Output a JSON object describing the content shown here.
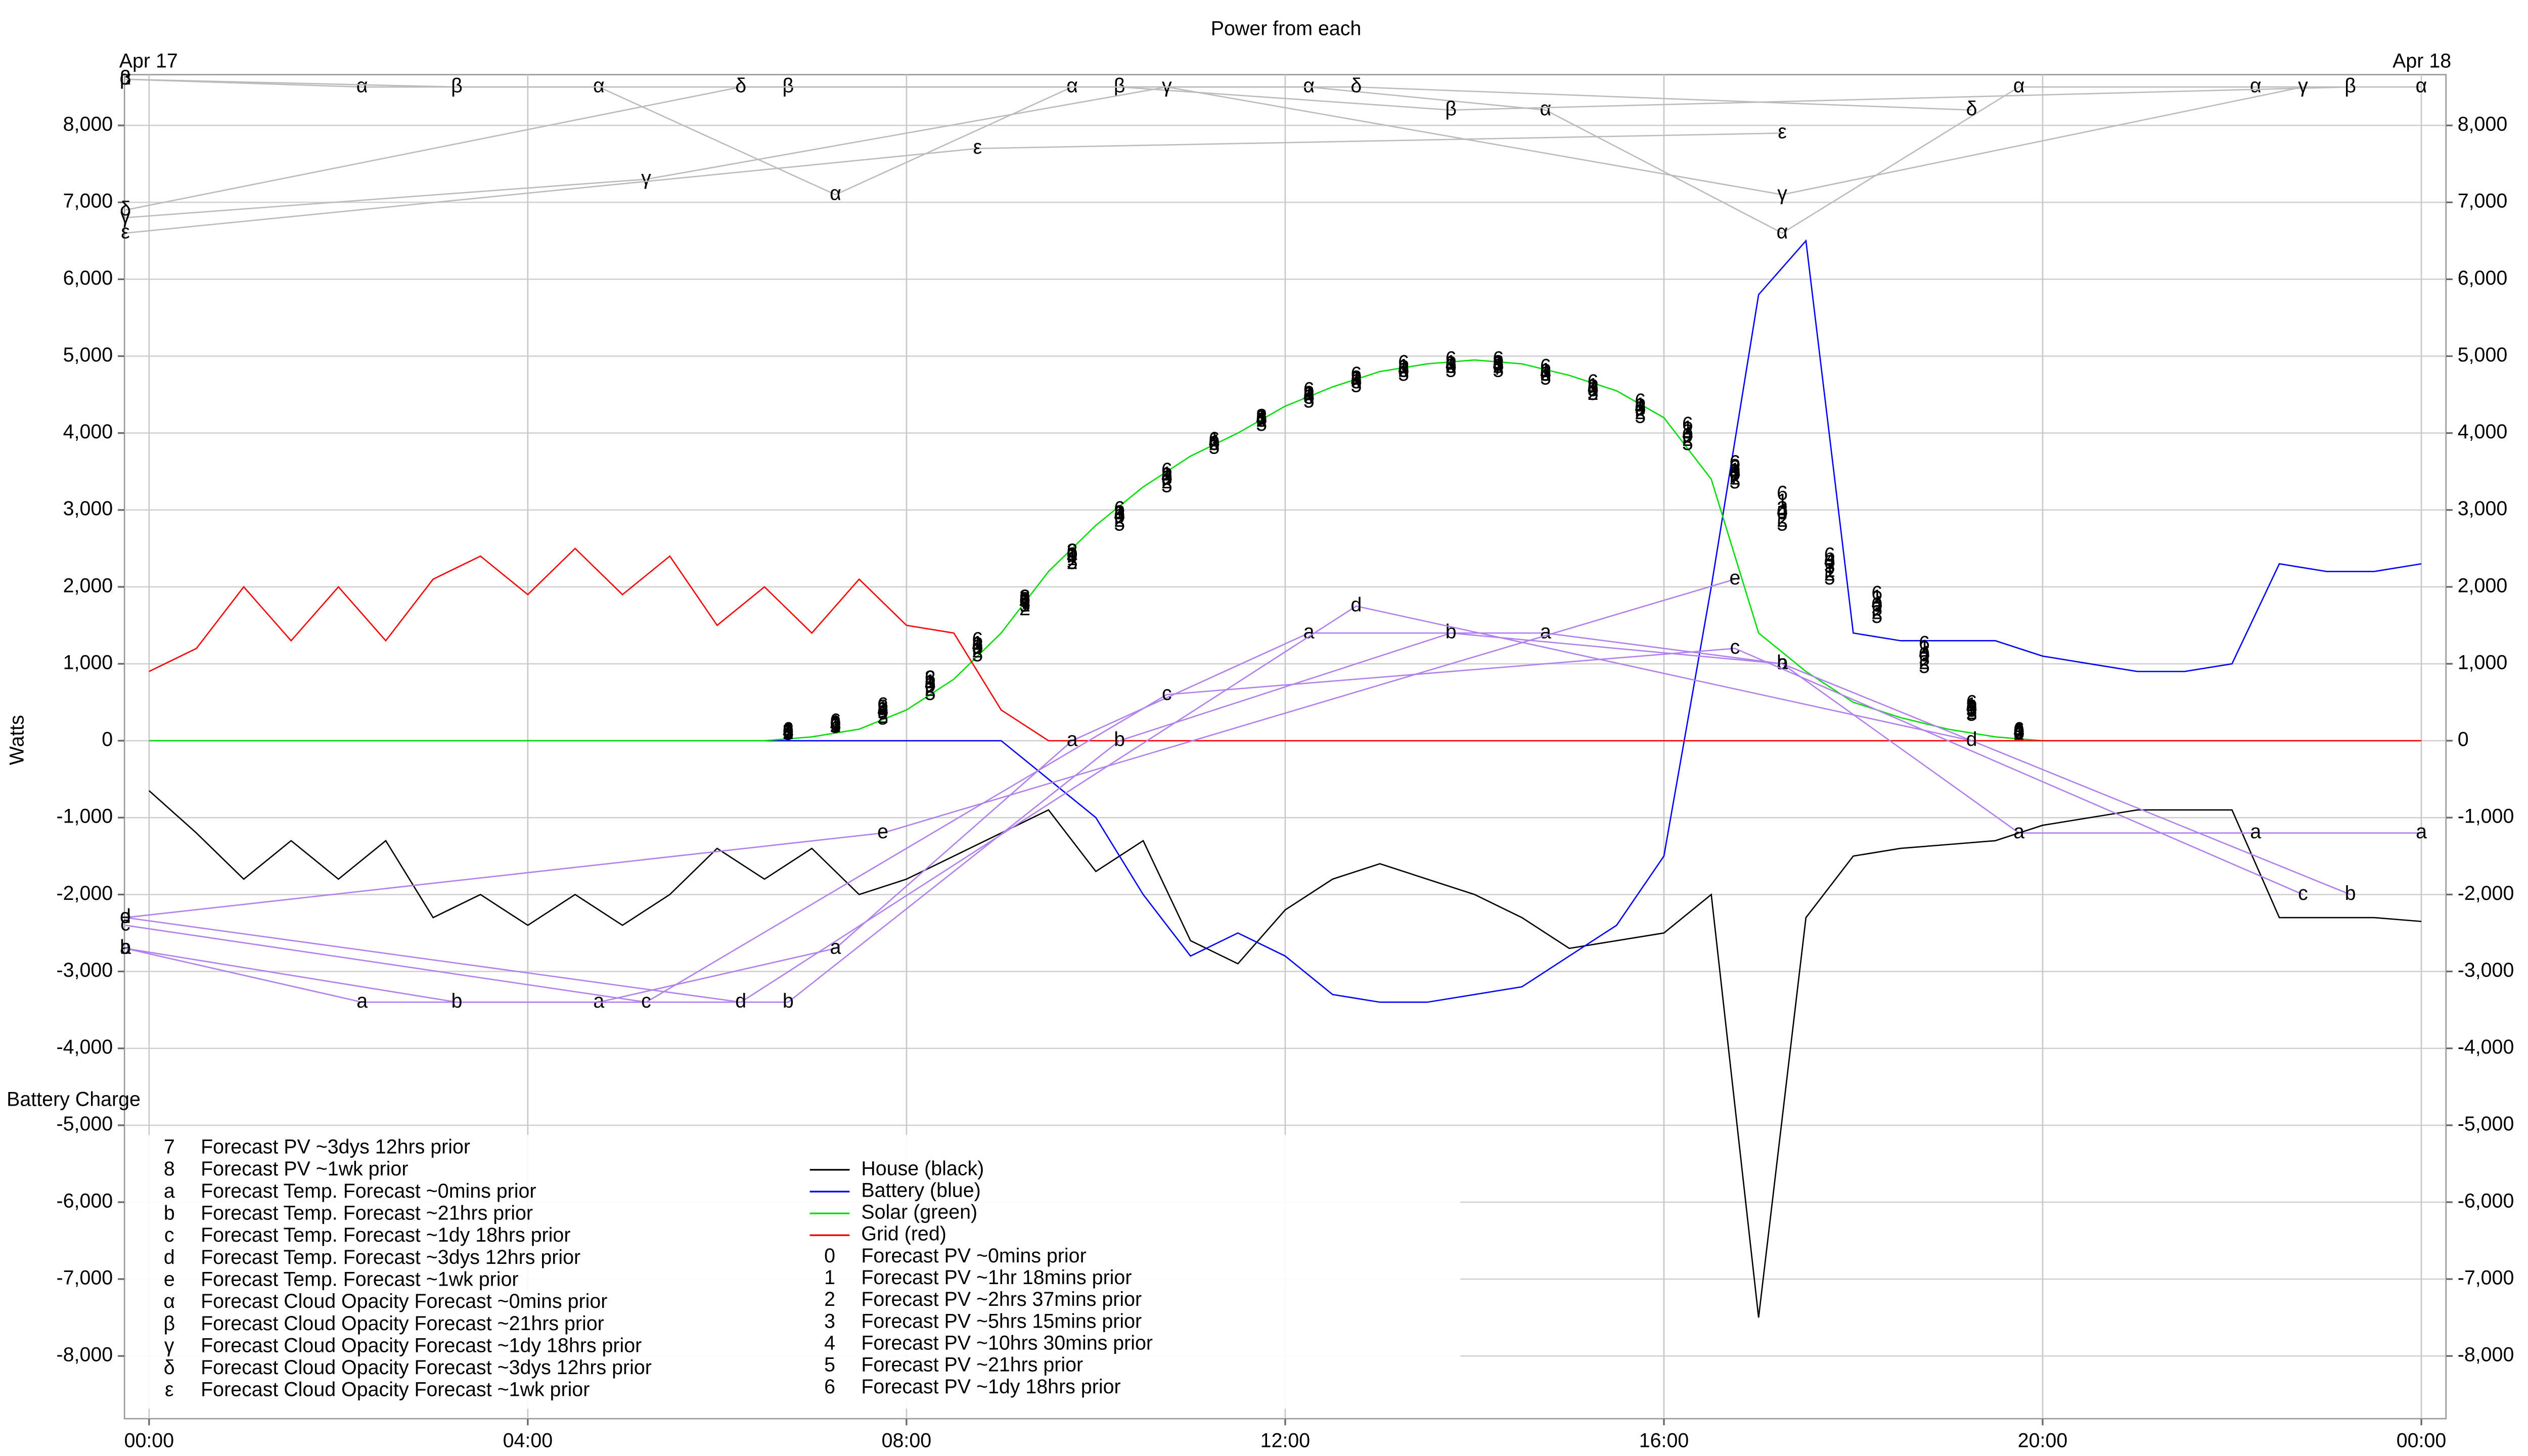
{
  "chart_data": {
    "type": "line",
    "title": "Power from each",
    "ylabel": "Watts",
    "annotations": [
      {
        "text": "Apr 17",
        "x": 0,
        "y": 8800
      },
      {
        "text": "Apr 18",
        "x": 24,
        "y": 8800
      },
      {
        "text": "Battery Charge",
        "x": -0.26,
        "y": -4700
      }
    ],
    "xlim": [
      -0.26,
      24.26
    ],
    "ylim": [
      -8815,
      8660
    ],
    "xticks": [
      {
        "value": 0,
        "label": "00:00"
      },
      {
        "value": 4,
        "label": "04:00"
      },
      {
        "value": 8,
        "label": "08:00"
      },
      {
        "value": 12,
        "label": "12:00"
      },
      {
        "value": 16,
        "label": "16:00"
      },
      {
        "value": 20,
        "label": "20:00"
      },
      {
        "value": 24,
        "label": "00:00"
      }
    ],
    "yticks": [
      {
        "value": -8000,
        "label": "-8,000"
      },
      {
        "value": -7000,
        "label": "-7,000"
      },
      {
        "value": -6000,
        "label": "-6,000"
      },
      {
        "value": -5000,
        "label": "-5,000"
      },
      {
        "value": -4000,
        "label": "-4,000"
      },
      {
        "value": -3000,
        "label": "-3,000"
      },
      {
        "value": -2000,
        "label": "-2,000"
      },
      {
        "value": -1000,
        "label": "-1,000"
      },
      0,
      {
        "value": 1000,
        "label": "1,000"
      },
      {
        "value": 2000,
        "label": "2,000"
      },
      {
        "value": 3000,
        "label": "3,000"
      },
      {
        "value": 4000,
        "label": "4,000"
      },
      {
        "value": 5000,
        "label": "5,000"
      },
      {
        "value": 6000,
        "label": "6,000"
      },
      {
        "value": 7000,
        "label": "7,000"
      },
      {
        "value": 8000,
        "label": "8,000"
      }
    ],
    "grid": true,
    "x": [
      0,
      0.5,
      1,
      1.5,
      2,
      2.5,
      3,
      3.5,
      4,
      4.5,
      5,
      5.5,
      6,
      6.5,
      7,
      7.5,
      8,
      8.5,
      9,
      9.5,
      10,
      10.5,
      11,
      11.5,
      12,
      12.5,
      13,
      13.5,
      14,
      14.5,
      15,
      15.5,
      16,
      16.5,
      17,
      17.5,
      18,
      18.5,
      19,
      19.5,
      20,
      20.5,
      21,
      21.5,
      22,
      22.5,
      23,
      23.5,
      24
    ],
    "series": [
      {
        "name": "House (black)",
        "color": "#000000",
        "values": [
          -650,
          -1200,
          -1800,
          -1300,
          -1800,
          -1300,
          -2300,
          -2000,
          -2400,
          -2000,
          -2400,
          -2000,
          -1400,
          -1800,
          -1400,
          -2000,
          -1800,
          -1500,
          -1200,
          -900,
          -1700,
          -1300,
          -2600,
          -2900,
          -2200,
          -1800,
          -1600,
          -1800,
          -2000,
          -2300,
          -2700,
          -2600,
          -2500,
          -2000,
          -7500,
          -2300,
          -1500,
          -1400,
          -1350,
          -1300,
          -1100,
          -1000,
          -900,
          -900,
          -900,
          -2300,
          -2300,
          -2300,
          -2350
        ]
      },
      {
        "name": "Battery (blue)",
        "color": "#0000ff",
        "values": [
          0,
          0,
          0,
          0,
          0,
          0,
          0,
          0,
          0,
          0,
          0,
          0,
          0,
          0,
          0,
          0,
          0,
          0,
          0,
          -500,
          -1000,
          -2000,
          -2800,
          -2500,
          -2800,
          -3300,
          -3400,
          -3400,
          -3300,
          -3200,
          -2800,
          -2400,
          -1500,
          2000,
          5800,
          6500,
          1400,
          1300,
          1300,
          1300,
          1100,
          1000,
          900,
          900,
          1000,
          2300,
          2200,
          2200,
          2300
        ]
      },
      {
        "name": "Solar (green)",
        "color": "#00dd00",
        "values": [
          0,
          0,
          0,
          0,
          0,
          0,
          0,
          0,
          0,
          0,
          0,
          0,
          0,
          0,
          50,
          150,
          400,
          800,
          1400,
          2200,
          2800,
          3300,
          3700,
          4000,
          4350,
          4600,
          4800,
          4900,
          4950,
          4900,
          4750,
          4550,
          4200,
          3400,
          1400,
          900,
          500,
          300,
          150,
          50,
          0,
          0,
          0,
          0,
          0,
          0,
          0,
          0,
          0
        ]
      },
      {
        "name": "Grid (red)",
        "color": "#ff0000",
        "values": [
          900,
          1200,
          2000,
          1300,
          2000,
          1300,
          2100,
          2400,
          1900,
          2500,
          1900,
          2400,
          1500,
          2000,
          1400,
          2100,
          1500,
          1400,
          400,
          0,
          0,
          0,
          0,
          0,
          0,
          0,
          0,
          0,
          0,
          0,
          0,
          0,
          0,
          0,
          0,
          0,
          0,
          0,
          0,
          0,
          0,
          0,
          0,
          0,
          0,
          0,
          0,
          0,
          0
        ]
      },
      {
        "name": "Forecast PV ~0mins prior",
        "symbol": "0",
        "color": "#000000",
        "x": [
          6.75,
          7.25,
          7.75,
          8.25,
          8.75,
          9.25,
          9.75,
          10.25,
          10.75,
          11.25,
          11.75,
          12.25,
          12.75,
          13.25,
          13.75,
          14.25,
          14.75,
          15.25,
          15.75,
          16.25,
          16.75,
          17.25,
          17.75,
          18.25,
          18.75,
          19.25,
          19.75
        ],
        "values": [
          100,
          200,
          350,
          700,
          1200,
          1800,
          2400,
          2900,
          3400,
          3850,
          4150,
          4450,
          4650,
          4800,
          4850,
          4850,
          4750,
          4550,
          4300,
          3950,
          3450,
          2950,
          2300,
          1750,
          1100,
          400,
          100
        ]
      },
      {
        "name": "Forecast PV ~1hr 18mins prior",
        "symbol": "1",
        "color": "#000000",
        "x": [
          6.75,
          7.25,
          7.75,
          8.25,
          8.75,
          9.25,
          9.75,
          10.25,
          10.75,
          11.25,
          11.75,
          12.25,
          12.75,
          13.25,
          13.75,
          14.25,
          14.75,
          15.25,
          15.75,
          16.25,
          16.75,
          17.25,
          17.75,
          18.25,
          18.75,
          19.25,
          19.75
        ],
        "values": [
          120,
          220,
          400,
          750,
          1250,
          1750,
          2350,
          2950,
          3450,
          3900,
          4200,
          4500,
          4700,
          4850,
          4900,
          4900,
          4800,
          4600,
          4350,
          4050,
          3500,
          3100,
          2200,
          1850,
          1200,
          450,
          120
        ]
      },
      {
        "name": "Forecast PV ~2hrs 37mins prior",
        "symbol": "2",
        "color": "#000000",
        "x": [
          6.75,
          7.25,
          7.75,
          8.25,
          8.75,
          9.25,
          9.75,
          10.25,
          10.75,
          11.25,
          11.75,
          12.25,
          12.75,
          13.25,
          13.75,
          14.25,
          14.75,
          15.25,
          15.75,
          16.25,
          16.75,
          17.25,
          17.75,
          18.25,
          18.75,
          19.25,
          19.75
        ],
        "values": [
          90,
          180,
          300,
          650,
          1150,
          1700,
          2300,
          2850,
          3350,
          3850,
          4150,
          4500,
          4700,
          4800,
          4850,
          4850,
          4750,
          4500,
          4250,
          3900,
          3400,
          2850,
          2150,
          1650,
          1000,
          350,
          80
        ]
      },
      {
        "name": "Forecast PV ~5hrs 15mins prior",
        "symbol": "3",
        "color": "#000000",
        "x": [
          6.75,
          7.25,
          7.75,
          8.25,
          8.75,
          9.25,
          9.75,
          10.25,
          10.75,
          11.25,
          11.75,
          12.25,
          12.75,
          13.25,
          13.75,
          14.25,
          14.75,
          15.25,
          15.75,
          16.25,
          16.75,
          17.25,
          17.75,
          18.25,
          18.75,
          19.25,
          19.75
        ],
        "values": [
          110,
          210,
          420,
          800,
          1200,
          1850,
          2450,
          2950,
          3400,
          3850,
          4200,
          4450,
          4650,
          4800,
          4850,
          4900,
          4750,
          4550,
          4300,
          4000,
          3550,
          3000,
          2250,
          1700,
          1050,
          380,
          100
        ]
      },
      {
        "name": "Forecast PV ~10hrs 30mins prior",
        "symbol": "4",
        "color": "#000000",
        "x": [
          6.75,
          7.25,
          7.75,
          8.25,
          8.75,
          9.25,
          9.75,
          10.25,
          10.75,
          11.25,
          11.75,
          12.25,
          12.75,
          13.25,
          13.75,
          14.25,
          14.75,
          15.25,
          15.75,
          16.25,
          16.75,
          17.25,
          17.75,
          18.25,
          18.75,
          19.25,
          19.75
        ],
        "values": [
          100,
          190,
          380,
          720,
          1220,
          1780,
          2380,
          2920,
          3420,
          3870,
          4170,
          4470,
          4670,
          4820,
          4870,
          4870,
          4770,
          4570,
          4320,
          3970,
          3470,
          2970,
          2320,
          1770,
          1120,
          420,
          110
        ]
      },
      {
        "name": "Forecast PV ~21hrs prior",
        "symbol": "5",
        "color": "#000000",
        "x": [
          6.75,
          7.25,
          7.75,
          8.25,
          8.75,
          9.25,
          9.75,
          10.25,
          10.75,
          11.25,
          11.75,
          12.25,
          12.75,
          13.25,
          13.75,
          14.25,
          14.75,
          15.25,
          15.75,
          16.25,
          16.75,
          17.25,
          17.75,
          18.25,
          18.75,
          19.25,
          19.75
        ],
        "values": [
          80,
          170,
          280,
          600,
          1100,
          1750,
          2300,
          2800,
          3300,
          3800,
          4100,
          4400,
          4600,
          4750,
          4800,
          4800,
          4700,
          4500,
          4200,
          3850,
          3350,
          2800,
          2100,
          1600,
          950,
          330,
          90
        ]
      },
      {
        "name": "Forecast PV ~1dy 18hrs prior",
        "symbol": "6",
        "color": "#000000",
        "x": [
          6.75,
          7.25,
          7.75,
          8.25,
          8.75,
          9.25,
          9.75,
          10.25,
          10.75,
          11.25,
          11.75,
          12.25,
          12.75,
          13.25,
          13.75,
          14.25,
          14.75,
          15.25,
          15.75,
          16.25,
          16.75,
          17.25,
          17.75,
          18.25,
          18.75,
          19.25,
          19.75
        ],
        "values": [
          130,
          240,
          450,
          800,
          1300,
          1850,
          2450,
          3000,
          3500,
          3900,
          4200,
          4550,
          4750,
          4900,
          4950,
          4950,
          4850,
          4650,
          4400,
          4100,
          3600,
          3200,
          2400,
          1900,
          1250,
          480,
          130
        ]
      },
      {
        "name": "Forecast PV ~3dys 12hrs prior",
        "symbol": "7",
        "color": "#000000",
        "x": [
          6.75,
          9.25,
          11.75,
          14.25,
          16.75,
          19.25
        ],
        "values": [
          90,
          1780,
          4150,
          4830,
          3420,
          380
        ]
      },
      {
        "name": "Forecast PV ~1wk prior",
        "symbol": "8",
        "color": "#000000",
        "x": [
          6.75,
          9.25,
          11.75,
          14.25,
          16.75,
          19.25
        ],
        "values": [
          110,
          1820,
          4180,
          4880,
          3480,
          420
        ]
      },
      {
        "name": "Forecast Temp. Forecast ~0mins prior",
        "symbol": "a",
        "color": "#b080f0",
        "x": [
          -0.25,
          2.25,
          4.75,
          7.25,
          9.75,
          12.25,
          14.75,
          17.25,
          19.75,
          22.25,
          24
        ],
        "values": [
          -2700,
          -3400,
          -3400,
          -2700,
          0,
          1400,
          1400,
          1000,
          -1200,
          -1200,
          -1200
        ]
      },
      {
        "name": "Forecast Temp. Forecast ~21hrs prior",
        "symbol": "b",
        "color": "#b080f0",
        "x": [
          -0.25,
          3.25,
          6.75,
          10.25,
          13.75,
          17.25,
          23.25
        ],
        "values": [
          -2700,
          -3400,
          -3400,
          0,
          1400,
          1000,
          -2000
        ]
      },
      {
        "name": "Forecast Temp. Forecast ~1dy 18hrs prior",
        "symbol": "c",
        "color": "#b080f0",
        "x": [
          -0.25,
          5.25,
          10.75,
          16.75,
          22.75
        ],
        "values": [
          -2400,
          -3400,
          600,
          1200,
          -2000
        ]
      },
      {
        "name": "Forecast Temp. Forecast ~3dys 12hrs prior",
        "symbol": "d",
        "color": "#b080f0",
        "x": [
          -0.25,
          6.25,
          12.75,
          19.25
        ],
        "values": [
          -2300,
          -3400,
          1750,
          0
        ]
      },
      {
        "name": "Forecast Temp. Forecast ~1wk prior",
        "symbol": "e",
        "color": "#b080f0",
        "x": [
          -0.25,
          7.75,
          16.75
        ],
        "values": [
          -2300,
          -1200,
          2100
        ]
      },
      {
        "name": "Forecast Cloud Opacity Forecast ~0mins prior",
        "symbol": "α",
        "color": "#bbbbbb",
        "x": [
          -0.25,
          2.25,
          4.75,
          7.25,
          9.75,
          12.25,
          14.75,
          17.25,
          19.75,
          22.25,
          24
        ],
        "values": [
          8600,
          8500,
          8500,
          7100,
          8500,
          8500,
          8200,
          6600,
          8500,
          8500,
          8500
        ]
      },
      {
        "name": "Forecast Cloud Opacity Forecast ~21hrs prior",
        "symbol": "β",
        "color": "#bbbbbb",
        "x": [
          -0.25,
          3.25,
          6.75,
          10.25,
          13.75,
          23.25
        ],
        "values": [
          8600,
          8500,
          8500,
          8500,
          8200,
          8500
        ]
      },
      {
        "name": "Forecast Cloud Opacity Forecast ~1dy 18hrs prior",
        "symbol": "γ",
        "color": "#bbbbbb",
        "x": [
          -0.25,
          5.25,
          10.75,
          17.25,
          22.75
        ],
        "values": [
          6800,
          7300,
          8500,
          7100,
          8500
        ]
      },
      {
        "name": "Forecast Cloud Opacity Forecast ~3dys 12hrs prior",
        "symbol": "δ",
        "color": "#bbbbbb",
        "x": [
          -0.25,
          6.25,
          12.75,
          19.25
        ],
        "values": [
          6900,
          8500,
          8500,
          8200
        ]
      },
      {
        "name": "Forecast Cloud Opacity Forecast ~1wk prior",
        "symbol": "ε",
        "color": "#bbbbbb",
        "x": [
          -0.25,
          8.75,
          17.25
        ],
        "values": [
          6600,
          7700,
          7900
        ]
      }
    ]
  }
}
